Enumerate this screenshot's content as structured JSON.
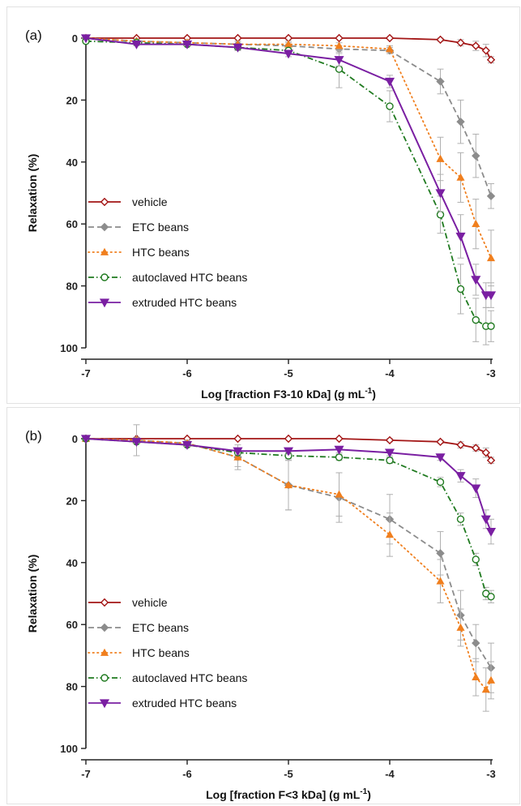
{
  "colors": {
    "vehicle": "#a31515",
    "etc": "#8c8c8c",
    "htc": "#f07f1e",
    "autoclaved": "#1f7a1f",
    "extruded": "#7a1fa2",
    "error": "#b0b0b0"
  },
  "chart_data": [
    {
      "type": "line",
      "panel_label": "(a)",
      "xlabel": "Log [fraction F3-10 kDa] (g mL",
      "xlabel_sup": "-1",
      "xlabel_end": ")",
      "ylabel": "Relaxation (%)",
      "xlim": [
        -7,
        -3
      ],
      "ylim": [
        0,
        100
      ],
      "y_inverted": true,
      "xticks": [
        "-7",
        "-6",
        "-5",
        "-4",
        "-3"
      ],
      "yticks": [
        "0",
        "20",
        "40",
        "60",
        "80",
        "100"
      ],
      "legend_position": "lower-left",
      "series": [
        {
          "name": "vehicle",
          "style": "solid",
          "marker": "diamond-open",
          "x": [
            -7,
            -6.5,
            -6,
            -5.5,
            -5,
            -4.5,
            -4,
            -3.5,
            -3.3,
            -3.15,
            -3.05,
            -3
          ],
          "y": [
            0,
            0,
            0,
            0,
            0,
            0,
            0,
            0.5,
            1.5,
            2.5,
            4,
            7
          ],
          "err": [
            0,
            0,
            0,
            0,
            0,
            0,
            0,
            0.5,
            1,
            1.5,
            2,
            1
          ]
        },
        {
          "name": "ETC beans",
          "style": "dashed",
          "marker": "diamond-filled",
          "x": [
            -7,
            -6.5,
            -6,
            -5.5,
            -5,
            -4.5,
            -4,
            -3.5,
            -3.3,
            -3.15,
            -3
          ],
          "y": [
            0,
            1,
            1.5,
            2,
            2.5,
            3.5,
            4,
            14,
            27,
            38,
            51
          ],
          "err": [
            0,
            0.5,
            0.5,
            1,
            1,
            1,
            1,
            4,
            7,
            7,
            4
          ]
        },
        {
          "name": "HTC beans",
          "style": "dotted",
          "marker": "triangle-up-filled",
          "x": [
            -7,
            -6.5,
            -6,
            -5.5,
            -5,
            -4.5,
            -4,
            -3.5,
            -3.3,
            -3.15,
            -3
          ],
          "y": [
            0,
            1,
            1.5,
            2,
            2,
            2.5,
            3.5,
            39,
            45,
            60,
            71
          ],
          "err": [
            0,
            0.5,
            0.5,
            1,
            1,
            1,
            1,
            7,
            8,
            8,
            9
          ]
        },
        {
          "name": "autoclaved HTC beans",
          "style": "dashdot",
          "marker": "circle-open",
          "x": [
            -7,
            -6.5,
            -6,
            -5.5,
            -5,
            -4.5,
            -4,
            -3.5,
            -3.3,
            -3.15,
            -3.05,
            -3
          ],
          "y": [
            1,
            1.5,
            2,
            3,
            4,
            10,
            22,
            57,
            81,
            91,
            93,
            93
          ],
          "err": [
            0,
            0.5,
            0.5,
            1,
            1,
            6,
            5,
            6,
            8,
            7,
            6,
            5
          ]
        },
        {
          "name": "extruded  HTC beans",
          "style": "solid",
          "marker": "triangle-down-filled",
          "x": [
            -7,
            -6.5,
            -6,
            -5.5,
            -5,
            -4.5,
            -4,
            -3.5,
            -3.3,
            -3.15,
            -3.05,
            -3
          ],
          "y": [
            0,
            2,
            2,
            3,
            5,
            7,
            14,
            50,
            64,
            78,
            83,
            83
          ],
          "err": [
            0,
            0.5,
            0.5,
            1,
            1,
            2,
            2,
            6,
            7,
            5,
            4,
            4
          ]
        }
      ]
    },
    {
      "type": "line",
      "panel_label": "(b)",
      "xlabel": "Log [fraction F<3 kDa] (g mL",
      "xlabel_sup": "-1",
      "xlabel_end": ")",
      "ylabel": "Relaxation (%)",
      "xlim": [
        -7,
        -3
      ],
      "ylim": [
        0,
        100
      ],
      "y_inverted": true,
      "xticks": [
        "-7",
        "-6",
        "-5",
        "-4",
        "-3"
      ],
      "yticks": [
        "0",
        "20",
        "40",
        "60",
        "80",
        "100"
      ],
      "legend_position": "lower-left",
      "series": [
        {
          "name": "vehicle",
          "style": "solid",
          "marker": "diamond-open",
          "x": [
            -7,
            -6.5,
            -6,
            -5.5,
            -5,
            -4.5,
            -4,
            -3.5,
            -3.3,
            -3.15,
            -3.05,
            -3
          ],
          "y": [
            0,
            0,
            0,
            0,
            0,
            0,
            0.5,
            1,
            2,
            3,
            4.5,
            7
          ],
          "err": [
            0,
            0,
            0,
            0,
            0,
            0,
            0.5,
            0.5,
            1,
            1,
            1.5,
            1
          ]
        },
        {
          "name": "ETC beans",
          "style": "dashed",
          "marker": "diamond-filled",
          "x": [
            -7,
            -6.5,
            -6,
            -5.5,
            -5,
            -4.5,
            -4,
            -3.5,
            -3.3,
            -3.15,
            -3
          ],
          "y": [
            0,
            0.5,
            1.5,
            6,
            15,
            19,
            26,
            37,
            57,
            66,
            74
          ],
          "err": [
            0,
            5,
            1,
            4,
            8,
            8,
            8,
            7,
            8,
            6,
            8
          ]
        },
        {
          "name": "HTC beans",
          "style": "dotted",
          "marker": "triangle-up-filled",
          "x": [
            -7,
            -6.5,
            -6,
            -5.5,
            -5,
            -4.5,
            -4,
            -3.5,
            -3.3,
            -3.15,
            -3.05,
            -3
          ],
          "y": [
            0,
            0.5,
            1.5,
            6,
            15,
            18,
            31,
            46,
            61,
            77,
            81,
            78
          ],
          "err": [
            0,
            1,
            1,
            3,
            8,
            7,
            7,
            7,
            6,
            6,
            7,
            6
          ]
        },
        {
          "name": "autoclaved HTC beans",
          "style": "dashdot",
          "marker": "circle-open",
          "x": [
            -7,
            -6.5,
            -6,
            -5.5,
            -5,
            -4.5,
            -4,
            -3.5,
            -3.3,
            -3.15,
            -3.05,
            -3
          ],
          "y": [
            0,
            1,
            2,
            4.5,
            5.5,
            6,
            7,
            14,
            26,
            39,
            50,
            51
          ],
          "err": [
            0,
            0.5,
            0.5,
            1,
            1,
            1,
            1,
            1.5,
            2,
            2,
            2,
            2
          ]
        },
        {
          "name": "extruded HTC beans",
          "style": "solid",
          "marker": "triangle-down-filled",
          "x": [
            -7,
            -6.5,
            -6,
            -5.5,
            -5,
            -4.5,
            -4,
            -3.5,
            -3.3,
            -3.15,
            -3.05,
            -3
          ],
          "y": [
            0,
            1,
            2,
            4,
            4,
            3.5,
            4.5,
            6,
            12,
            16,
            26,
            30
          ],
          "err": [
            0,
            0.5,
            0.5,
            1,
            1,
            1,
            1,
            1,
            2,
            3,
            3,
            4
          ]
        }
      ]
    }
  ]
}
